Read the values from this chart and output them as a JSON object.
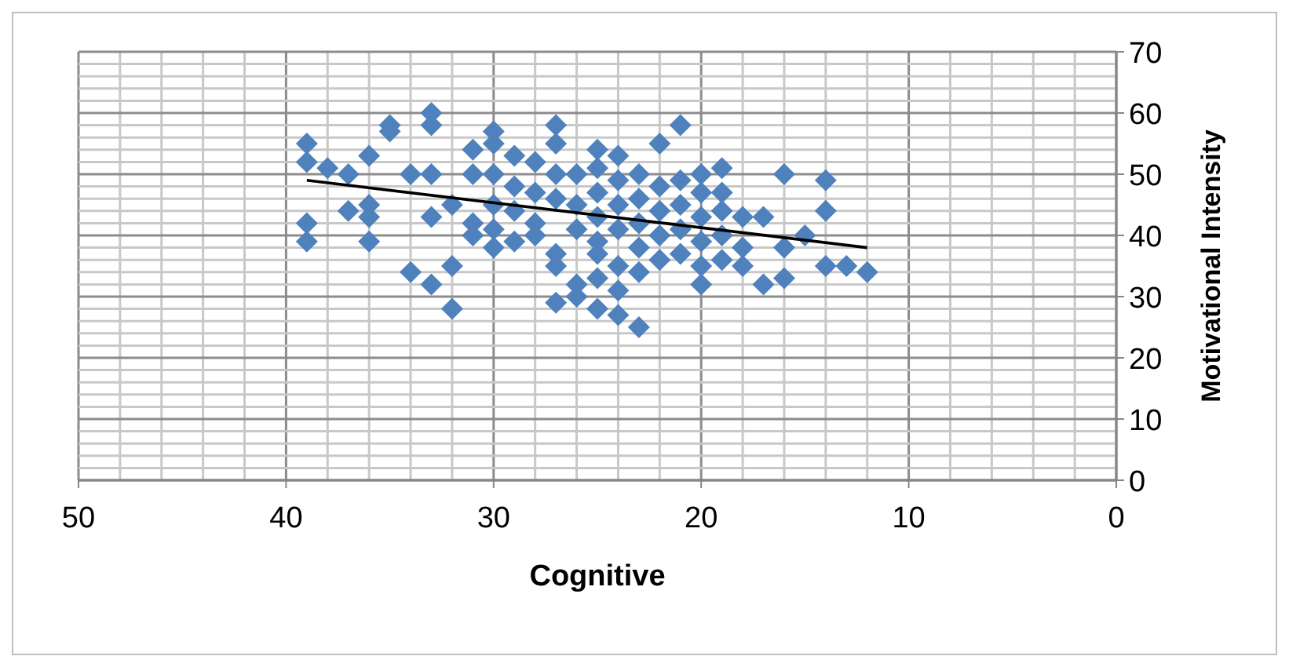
{
  "chart_data": {
    "type": "scatter",
    "xlabel": "Cognitive",
    "ylabel": "Motivational Intensity",
    "xlim": [
      50,
      0
    ],
    "ylim": [
      0,
      70
    ],
    "xticks": [
      50,
      {
        "value": 48,
        "label": null
      },
      {
        "value": 46,
        "label": null
      },
      {
        "value": 44,
        "label": null
      },
      {
        "value": 42,
        "label": null
      },
      40,
      {
        "value": 38,
        "label": null
      },
      {
        "value": 36,
        "label": null
      },
      {
        "value": 34,
        "label": null
      },
      {
        "value": 32,
        "label": null
      },
      30,
      {
        "value": 28,
        "label": null
      },
      {
        "value": 26,
        "label": null
      },
      {
        "value": 24,
        "label": null
      },
      {
        "value": 22,
        "label": null
      },
      20,
      {
        "value": 18,
        "label": null
      },
      {
        "value": 16,
        "label": null
      },
      {
        "value": 14,
        "label": null
      },
      {
        "value": 12,
        "label": null
      },
      10,
      {
        "value": 8,
        "label": null
      },
      {
        "value": 6,
        "label": null
      },
      {
        "value": 4,
        "label": null
      },
      {
        "value": 2,
        "label": null
      },
      0
    ],
    "yticks": [
      0,
      {
        "value": 2,
        "label": null
      },
      {
        "value": 4,
        "label": null
      },
      {
        "value": 6,
        "label": null
      },
      {
        "value": 8,
        "label": null
      },
      10,
      {
        "value": 12,
        "label": null
      },
      {
        "value": 14,
        "label": null
      },
      {
        "value": 16,
        "label": null
      },
      {
        "value": 18,
        "label": null
      },
      20,
      {
        "value": 22,
        "label": null
      },
      {
        "value": 24,
        "label": null
      },
      {
        "value": 26,
        "label": null
      },
      {
        "value": 28,
        "label": null
      },
      30,
      {
        "value": 32,
        "label": null
      },
      {
        "value": 34,
        "label": null
      },
      {
        "value": 36,
        "label": null
      },
      {
        "value": 38,
        "label": null
      },
      40,
      {
        "value": 42,
        "label": null
      },
      {
        "value": 44,
        "label": null
      },
      {
        "value": 46,
        "label": null
      },
      {
        "value": 48,
        "label": null
      },
      50,
      {
        "value": 52,
        "label": null
      },
      {
        "value": 54,
        "label": null
      },
      {
        "value": 56,
        "label": null
      },
      {
        "value": 58,
        "label": null
      },
      60,
      {
        "value": 62,
        "label": null
      },
      {
        "value": 64,
        "label": null
      },
      {
        "value": 66,
        "label": null
      },
      {
        "value": 68,
        "label": null
      },
      70
    ],
    "grid": true,
    "series": [
      {
        "marker": "diamond",
        "color": "#4f81bd",
        "x": [
          39,
          39,
          39,
          39,
          38,
          37,
          37,
          36,
          36,
          36,
          36,
          35,
          35,
          34,
          34,
          33,
          33,
          33,
          33,
          33,
          32,
          32,
          32,
          31,
          31,
          31,
          31,
          30,
          30,
          30,
          30,
          30,
          30,
          29,
          29,
          29,
          29,
          28,
          28,
          28,
          28,
          27,
          27,
          27,
          27,
          27,
          27,
          27,
          26,
          26,
          26,
          26,
          26,
          25,
          25,
          25,
          25,
          25,
          25,
          25,
          25,
          24,
          24,
          24,
          24,
          24,
          24,
          24,
          23,
          23,
          23,
          23,
          23,
          23,
          22,
          22,
          22,
          22,
          22,
          21,
          21,
          21,
          21,
          21,
          20,
          20,
          20,
          20,
          20,
          20,
          19,
          19,
          19,
          19,
          19,
          18,
          18,
          18,
          17,
          17,
          16,
          16,
          16,
          15,
          14,
          14,
          14,
          13,
          12
        ],
        "values": [
          55,
          52,
          42,
          39,
          51,
          50,
          44,
          53,
          45,
          43,
          39,
          58,
          57,
          50,
          34,
          60,
          58,
          50,
          43,
          32,
          35,
          28,
          45,
          54,
          50,
          42,
          40,
          57,
          55,
          50,
          45,
          41,
          38,
          53,
          48,
          44,
          39,
          52,
          47,
          42,
          40,
          58,
          55,
          50,
          46,
          37,
          35,
          29,
          50,
          45,
          41,
          32,
          30,
          54,
          51,
          47,
          43,
          39,
          37,
          33,
          28,
          53,
          49,
          45,
          41,
          35,
          31,
          27,
          50,
          46,
          42,
          38,
          34,
          25,
          55,
          48,
          44,
          40,
          36,
          58,
          49,
          45,
          41,
          37,
          50,
          47,
          43,
          39,
          35,
          32,
          51,
          47,
          44,
          40,
          36,
          43,
          38,
          35,
          43,
          32,
          50,
          38,
          33,
          40,
          49,
          44,
          35,
          35,
          34
        ]
      },
      {
        "type": "line",
        "marker": "none",
        "line_style": "solid",
        "color": "#000000",
        "x": [
          39,
          12
        ],
        "values": [
          49,
          38
        ]
      }
    ]
  }
}
